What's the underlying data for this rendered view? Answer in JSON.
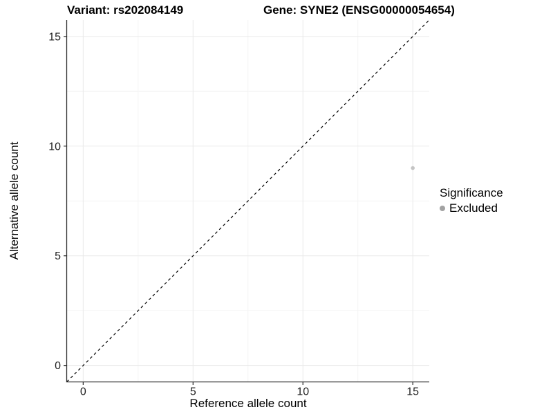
{
  "chart_data": {
    "type": "scatter",
    "title_left": "Variant: rs202084149",
    "title_right": "Gene: SYNE2 (ENSG00000054654)",
    "xlabel": "Reference allele count",
    "ylabel": "Alternative allele count",
    "xlim": [
      -0.75,
      15.75
    ],
    "ylim": [
      -0.75,
      15.75
    ],
    "x_major_ticks": [
      0,
      5,
      10,
      15
    ],
    "y_major_ticks": [
      0,
      5,
      10,
      15
    ],
    "x_minor_ticks": [
      2.5,
      7.5,
      12.5
    ],
    "y_minor_ticks": [
      2.5,
      7.5,
      12.5
    ],
    "grid": "major+minor",
    "identity_line": {
      "style": "dashed",
      "x1": -0.75,
      "y1": -0.75,
      "x2": 15.75,
      "y2": 15.75
    },
    "series": [
      {
        "name": "Excluded",
        "points": [
          {
            "x": 15,
            "y": 9
          }
        ]
      }
    ],
    "legend": {
      "title": "Significance",
      "position": "right",
      "items": [
        {
          "label": "Excluded"
        }
      ]
    }
  },
  "colors": {
    "background": "#ffffff",
    "axis_line": "#2b2b2b",
    "grid_major": "#e9e9e9",
    "grid_minor": "#f4f4f4",
    "tick_label": "#1f1f1f",
    "identity_line": "#000000",
    "point_fill": "#c4c4c4",
    "legend_dot": "#a2a2a2"
  }
}
